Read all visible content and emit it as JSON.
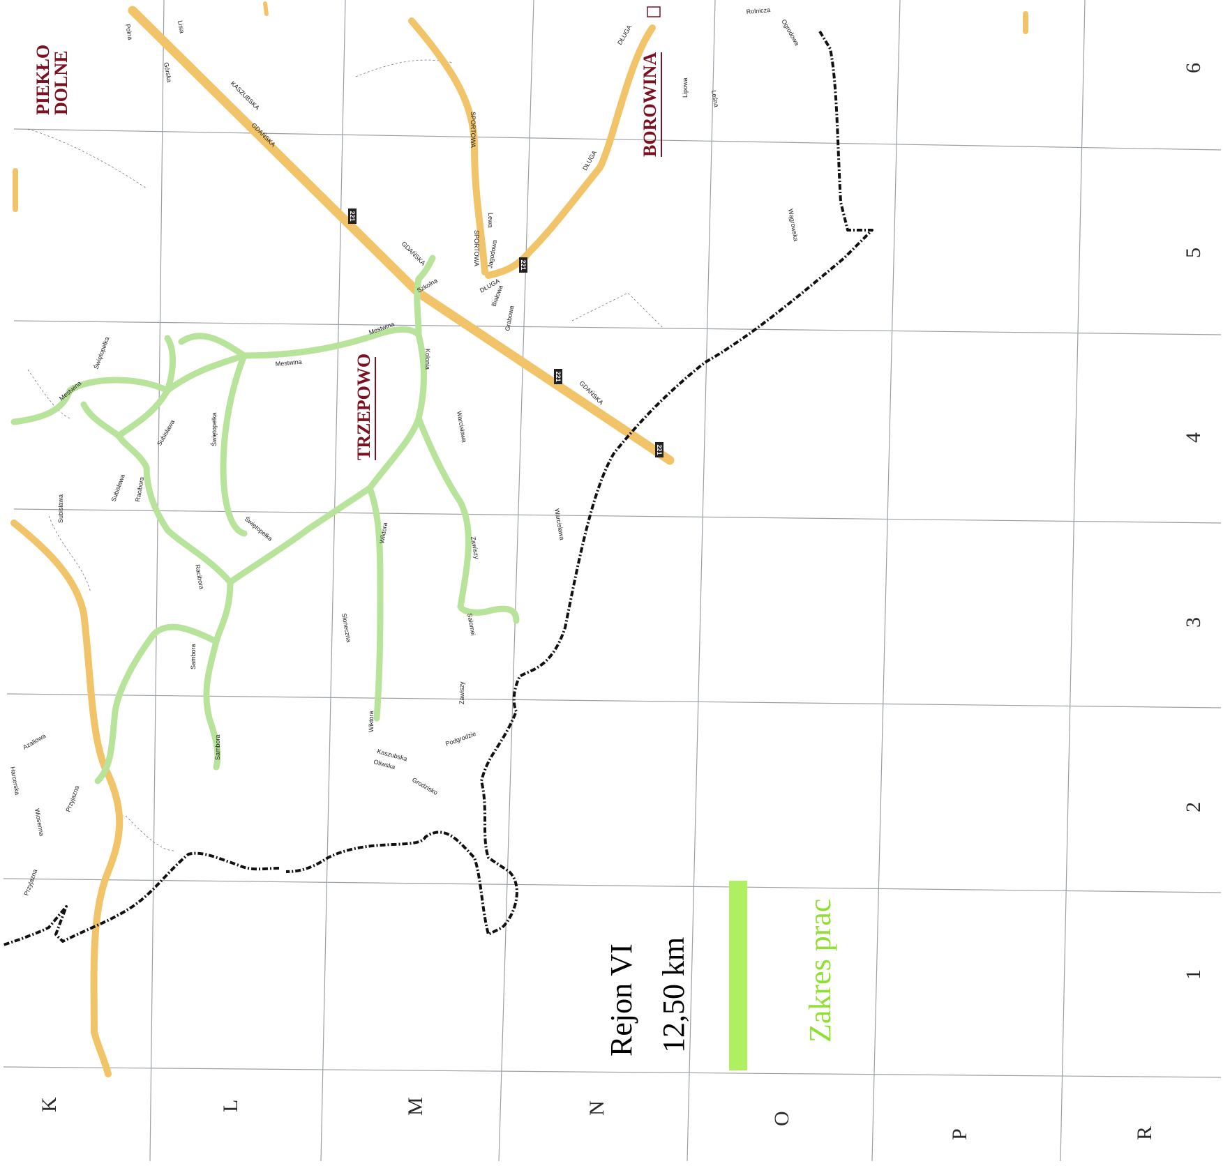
{
  "map": {
    "column_labels": [
      "K",
      "L",
      "M",
      "N",
      "O",
      "P",
      "R"
    ],
    "row_labels": [
      "1",
      "2",
      "3",
      "4",
      "5",
      "6"
    ],
    "settlements": {
      "pieklo": [
        "PIEKŁO",
        "DOLNE"
      ],
      "borowina": "BOROWINA",
      "trzepowo": "TRZEPOWO"
    },
    "route_number": "221",
    "streets": {
      "gdanska": "GDAŃSKA",
      "kaszubska": "KASZUBSKA",
      "sportowa": "SPORTOWA",
      "dluga": "DŁUGA",
      "mestwina": "Mestwina",
      "swietopelka": "Świętopełka",
      "subisława": "Subisława",
      "racibora": "Racibora",
      "sambora": "Sambora",
      "wiktora": "Wiktora",
      "kolonia": "Kolonia",
      "warcisława": "Warcisława",
      "salomei": "Salomei",
      "zawisza": "Zawiszy",
      "podgrodzie": "Podgrodzie",
      "grodzisko": "Grodzisko",
      "kaszubska_s": "Kaszubska",
      "oliwska": "Oliwska",
      "sloneczna": "Słoneczna",
      "grabowa": "Grabowa",
      "bialowa": "Białowa",
      "lewa": "Lewa",
      "jagodowa": "Jagodowa",
      "azaliowa": "Azaliowa",
      "harcerska": "Harcerska",
      "wiosenna": "Wiosenna",
      "przyjazna": "Przyjazna",
      "lipowa": "Lipowa",
      "lesna": "Leśna",
      "ogrodowa": "Ogrodowa",
      "szkolna": "Szkolna",
      "wagrowska": "Wągrowska",
      "rolnicza": "Rolnicza",
      "polna": "Polna",
      "gorska": "Górska",
      "lisia": "Lisia"
    },
    "colors": {
      "main_road": "#f2c46a",
      "work_scope": "#b8e39a",
      "boundary": "#111111",
      "town_name": "#7a1020"
    }
  },
  "legend": {
    "region": "Rejon VI",
    "length": "12,50 km",
    "scope_label": "Zakres prac",
    "scope_color": "#aef060"
  }
}
